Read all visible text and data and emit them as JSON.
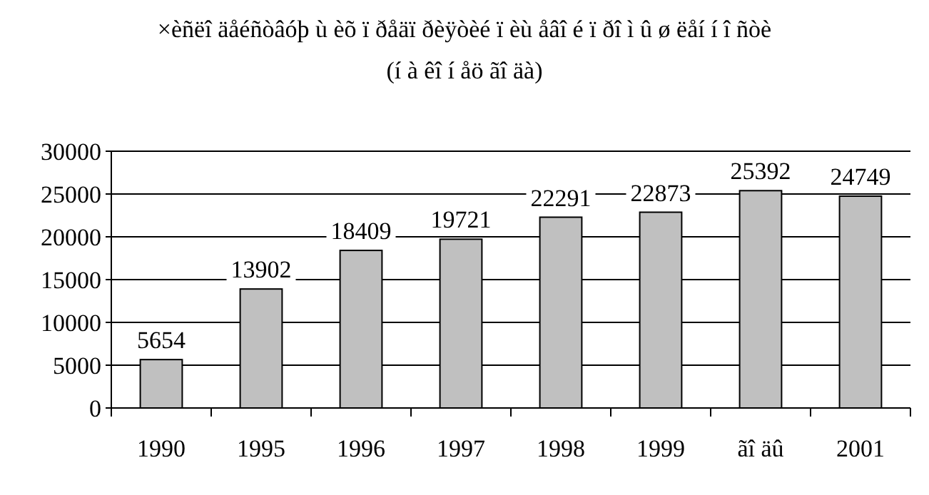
{
  "chart_data": {
    "type": "bar",
    "title": "×èñëî  äåéñòâóþ ù èõ ï ðåäï ðèÿòèé  ï èù åâî é  ï ðî ì û ø ëåí í î ñòè",
    "subtitle": "(í à êî í åö ãî äà)",
    "categories": [
      "1990",
      "1995",
      "1996",
      "1997",
      "1998",
      "1999",
      "ãî äû",
      "2001"
    ],
    "values": [
      5654,
      13902,
      18409,
      19721,
      22291,
      22873,
      25392,
      24749
    ],
    "color": "#c0c0c0",
    "ylim": [
      0,
      30000
    ],
    "yticks": [
      0,
      5000,
      10000,
      15000,
      20000,
      25000,
      30000
    ],
    "grid": "y",
    "data_labels": true
  }
}
